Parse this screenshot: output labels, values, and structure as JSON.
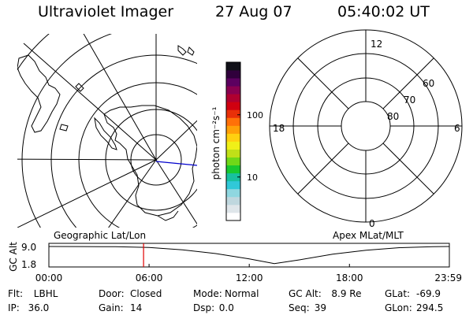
{
  "header": {
    "title": "Ultraviolet Imager",
    "date": "27 Aug 07",
    "time": "05:40:02 UT"
  },
  "colorbar": {
    "label": "photon cm⁻²s⁻¹",
    "ticks": [
      {
        "value": 10,
        "label": "10"
      },
      {
        "value": 100,
        "label": "100"
      }
    ],
    "range": [
      2,
      700
    ],
    "colors": [
      "#ffffff",
      "#dfe6ea",
      "#bfd7de",
      "#8fd7e0",
      "#30c8d8",
      "#18c0a0",
      "#18c830",
      "#70d818",
      "#c0e018",
      "#f0f018",
      "#ffd010",
      "#ffa008",
      "#ff7008",
      "#e83008",
      "#d00010",
      "#b00030",
      "#8a0050",
      "#5c0060",
      "#30003c",
      "#101018"
    ]
  },
  "left_panel": {
    "caption": "Geographic Lat/Lon"
  },
  "right_panel": {
    "caption": "Apex MLat/MLT",
    "mlt_labels": [
      "12",
      "18",
      "6",
      "0"
    ],
    "lat_labels": [
      "60",
      "70",
      "80"
    ]
  },
  "chart_data": {
    "type": "line",
    "title": "",
    "ylabel": "GC Alt",
    "y_ticks": [
      "9.0",
      "1.8"
    ],
    "ylim": [
      1.8,
      9.0
    ],
    "xlim": [
      0,
      23.983
    ],
    "x_ticks": [
      "00:00",
      "06:00",
      "12:00",
      "18:00",
      "23:59"
    ],
    "x_tick_values": [
      0,
      6,
      12,
      18,
      23.983
    ],
    "series": [
      {
        "x": [
          0,
          2,
          4,
          6,
          8,
          10,
          12,
          13.5,
          15,
          17,
          19,
          21,
          23,
          23.983
        ],
        "y": [
          9.0,
          8.98,
          8.9,
          8.65,
          7.75,
          6.3,
          4.3,
          2.5,
          3.9,
          6.05,
          7.6,
          8.55,
          8.95,
          9.0
        ]
      }
    ],
    "current_time_marker": 5.67
  },
  "status": [
    [
      {
        "label": "Flt:",
        "value": "LBHL"
      },
      {
        "label": "Door:",
        "value": "Closed"
      },
      {
        "label": "Mode:",
        "value": "Normal"
      },
      {
        "label": "GC Alt:",
        "value": "8.9 Re"
      },
      {
        "label": "GLat:",
        "value": "-69.9"
      }
    ],
    [
      {
        "label": "IP:",
        "value": "36.0"
      },
      {
        "label": "Gain:",
        "value": "14"
      },
      {
        "label": "Dsp:",
        "value": "0.0"
      },
      {
        "label": "Seq:",
        "value": "39"
      },
      {
        "label": "GLon:",
        "value": "294.5"
      }
    ]
  ]
}
